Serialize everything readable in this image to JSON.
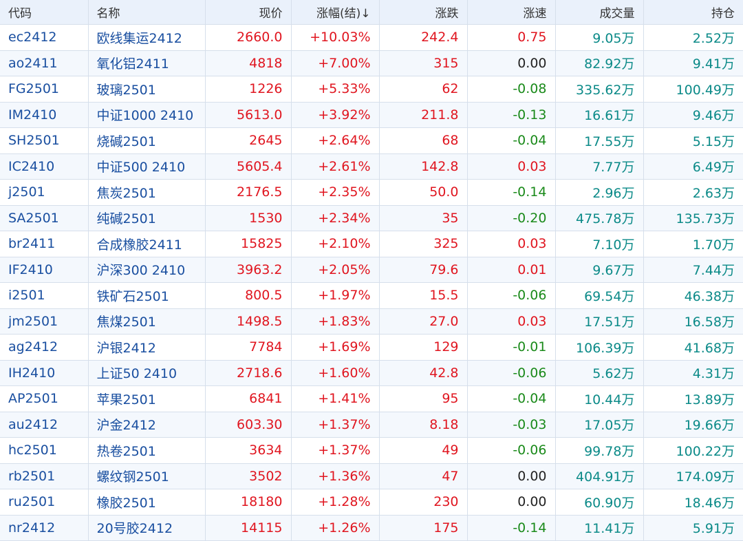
{
  "headers": {
    "code": "代码",
    "name": "名称",
    "price": "现价",
    "pct": "涨幅(结)",
    "sort_icon": "↓",
    "chg": "涨跌",
    "speed": "涨速",
    "volume": "成交量",
    "oi": "持仓"
  },
  "colors": {
    "up": "#e0151f",
    "down": "#1a8a1a",
    "link": "#1a4fa0",
    "teal": "#0b8a88"
  },
  "rows": [
    {
      "code": "ec2412",
      "name": "欧线集运2412",
      "price": "2660.0",
      "pct": "+10.03%",
      "chg": "242.4",
      "speed": "0.75",
      "volume": "9.05万",
      "oi": "2.52万"
    },
    {
      "code": "ao2411",
      "name": "氧化铝2411",
      "price": "4818",
      "pct": "+7.00%",
      "chg": "315",
      "speed": "0.00",
      "volume": "82.92万",
      "oi": "9.41万"
    },
    {
      "code": "FG2501",
      "name": "玻璃2501",
      "price": "1226",
      "pct": "+5.33%",
      "chg": "62",
      "speed": "-0.08",
      "volume": "335.62万",
      "oi": "100.49万"
    },
    {
      "code": "IM2410",
      "name": "中证1000 2410",
      "price": "5613.0",
      "pct": "+3.92%",
      "chg": "211.8",
      "speed": "-0.13",
      "volume": "16.61万",
      "oi": "9.46万"
    },
    {
      "code": "SH2501",
      "name": "烧碱2501",
      "price": "2645",
      "pct": "+2.64%",
      "chg": "68",
      "speed": "-0.04",
      "volume": "17.55万",
      "oi": "5.15万"
    },
    {
      "code": "IC2410",
      "name": "中证500 2410",
      "price": "5605.4",
      "pct": "+2.61%",
      "chg": "142.8",
      "speed": "0.03",
      "volume": "7.77万",
      "oi": "6.49万"
    },
    {
      "code": "j2501",
      "name": "焦炭2501",
      "price": "2176.5",
      "pct": "+2.35%",
      "chg": "50.0",
      "speed": "-0.14",
      "volume": "2.96万",
      "oi": "2.63万"
    },
    {
      "code": "SA2501",
      "name": "纯碱2501",
      "price": "1530",
      "pct": "+2.34%",
      "chg": "35",
      "speed": "-0.20",
      "volume": "475.78万",
      "oi": "135.73万"
    },
    {
      "code": "br2411",
      "name": "合成橡胶2411",
      "price": "15825",
      "pct": "+2.10%",
      "chg": "325",
      "speed": "0.03",
      "volume": "7.10万",
      "oi": "1.70万"
    },
    {
      "code": "IF2410",
      "name": "沪深300 2410",
      "price": "3963.2",
      "pct": "+2.05%",
      "chg": "79.6",
      "speed": "0.01",
      "volume": "9.67万",
      "oi": "7.44万"
    },
    {
      "code": "i2501",
      "name": "铁矿石2501",
      "price": "800.5",
      "pct": "+1.97%",
      "chg": "15.5",
      "speed": "-0.06",
      "volume": "69.54万",
      "oi": "46.38万"
    },
    {
      "code": "jm2501",
      "name": "焦煤2501",
      "price": "1498.5",
      "pct": "+1.83%",
      "chg": "27.0",
      "speed": "0.03",
      "volume": "17.51万",
      "oi": "16.58万"
    },
    {
      "code": "ag2412",
      "name": "沪银2412",
      "price": "7784",
      "pct": "+1.69%",
      "chg": "129",
      "speed": "-0.01",
      "volume": "106.39万",
      "oi": "41.68万"
    },
    {
      "code": "IH2410",
      "name": "上证50 2410",
      "price": "2718.6",
      "pct": "+1.60%",
      "chg": "42.8",
      "speed": "-0.06",
      "volume": "5.62万",
      "oi": "4.31万"
    },
    {
      "code": "AP2501",
      "name": "苹果2501",
      "price": "6841",
      "pct": "+1.41%",
      "chg": "95",
      "speed": "-0.04",
      "volume": "10.44万",
      "oi": "13.89万"
    },
    {
      "code": "au2412",
      "name": "沪金2412",
      "price": "603.30",
      "pct": "+1.37%",
      "chg": "8.18",
      "speed": "-0.03",
      "volume": "17.05万",
      "oi": "19.66万"
    },
    {
      "code": "hc2501",
      "name": "热卷2501",
      "price": "3634",
      "pct": "+1.37%",
      "chg": "49",
      "speed": "-0.06",
      "volume": "99.78万",
      "oi": "100.22万"
    },
    {
      "code": "rb2501",
      "name": "螺纹钢2501",
      "price": "3502",
      "pct": "+1.36%",
      "chg": "47",
      "speed": "0.00",
      "volume": "404.91万",
      "oi": "174.09万"
    },
    {
      "code": "ru2501",
      "name": "橡胶2501",
      "price": "18180",
      "pct": "+1.28%",
      "chg": "230",
      "speed": "0.00",
      "volume": "60.90万",
      "oi": "18.46万"
    },
    {
      "code": "nr2412",
      "name": "20号胶2412",
      "price": "14115",
      "pct": "+1.26%",
      "chg": "175",
      "speed": "-0.14",
      "volume": "11.41万",
      "oi": "5.91万"
    }
  ]
}
